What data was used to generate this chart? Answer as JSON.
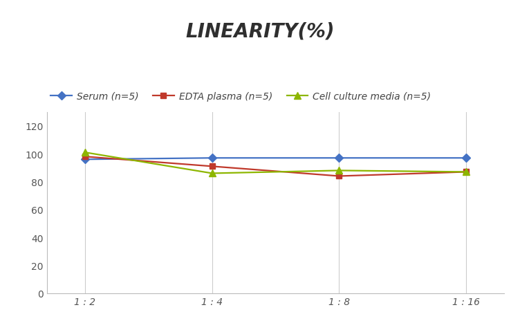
{
  "title": "LINEARITY(%)",
  "x_labels": [
    "1 : 2",
    "1 : 4",
    "1 : 8",
    "1 : 16"
  ],
  "x_positions": [
    0,
    1,
    2,
    3
  ],
  "series": [
    {
      "label": "Serum (n=5)",
      "values": [
        96,
        97,
        97,
        97
      ],
      "color": "#4472C4",
      "marker": "D",
      "markersize": 6
    },
    {
      "label": "EDTA plasma (n=5)",
      "values": [
        98,
        91,
        84,
        87
      ],
      "color": "#C0392B",
      "marker": "s",
      "markersize": 6
    },
    {
      "label": "Cell culture media (n=5)",
      "values": [
        101,
        86,
        88,
        87
      ],
      "color": "#8DB600",
      "marker": "^",
      "markersize": 7
    }
  ],
  "ylim": [
    0,
    130
  ],
  "yticks": [
    0,
    20,
    40,
    60,
    80,
    100,
    120
  ],
  "background_color": "#ffffff",
  "title_fontsize": 20,
  "title_color": "#2f2f2f",
  "legend_fontsize": 9.5,
  "axis_color": "#bbbbbb",
  "grid_color": "#cccccc",
  "tick_color": "#555555",
  "tick_fontsize": 10
}
